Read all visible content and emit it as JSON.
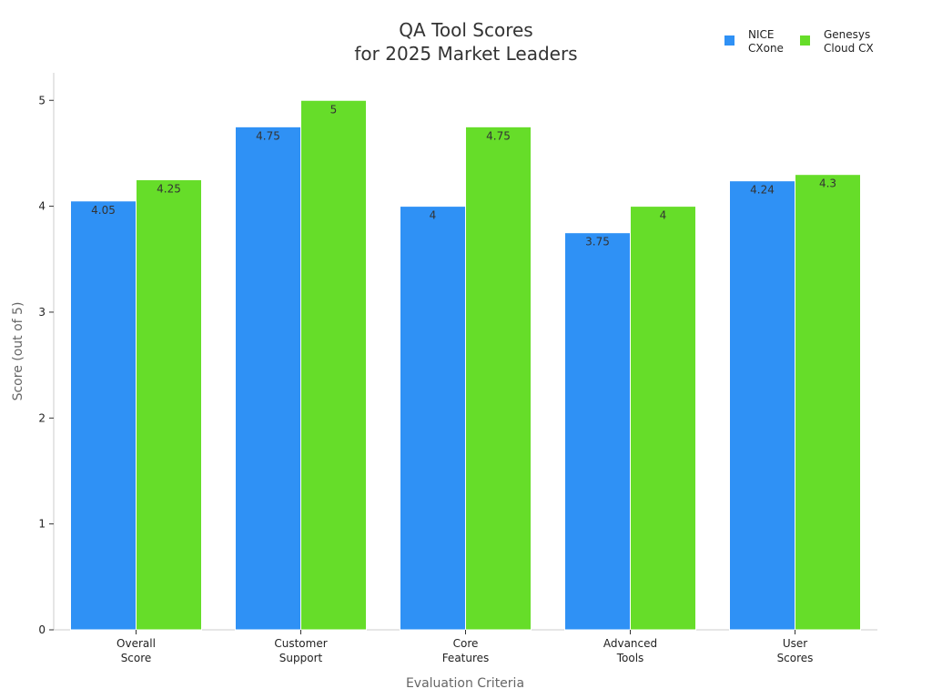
{
  "chart_data": {
    "type": "bar",
    "title_lines": [
      "QA Tool Scores",
      "for 2025 Market Leaders"
    ],
    "xlabel": "Evaluation Criteria",
    "ylabel": "Score (out of 5)",
    "ylim": [
      0,
      5.26
    ],
    "yticks": [
      0,
      1,
      2,
      3,
      4,
      5
    ],
    "categories": [
      [
        "Overall",
        "Score"
      ],
      [
        "Customer",
        "Support"
      ],
      [
        "Core",
        "Features"
      ],
      [
        "Advanced",
        "Tools"
      ],
      [
        "User",
        "Scores"
      ]
    ],
    "series": [
      {
        "name_lines": [
          "NICE",
          "CXone"
        ],
        "color": "#2f91f5",
        "values": [
          4.05,
          4.75,
          4,
          3.75,
          4.24
        ],
        "labels": [
          "4.05",
          "4.75",
          "4",
          "3.75",
          "4.24"
        ]
      },
      {
        "name_lines": [
          "Genesys",
          "Cloud CX"
        ],
        "color": "#66dd29",
        "values": [
          4.25,
          5,
          4.75,
          4,
          4.3
        ],
        "labels": [
          "4.25",
          "5",
          "4.75",
          "4",
          "4.3"
        ]
      }
    ],
    "legend_position": "top-right",
    "grid": false
  }
}
